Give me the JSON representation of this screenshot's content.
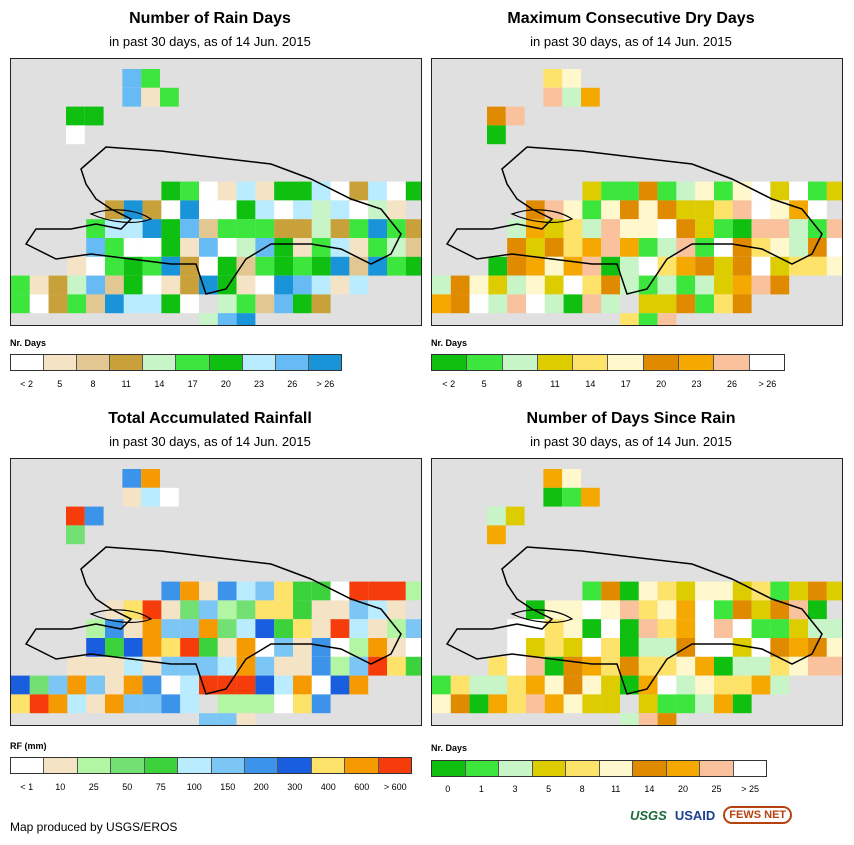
{
  "panels": [
    {
      "title": "Number of Rain Days",
      "subtitle": "in past 30 days, as of 14 Jun. 2015",
      "legend_title": "Nr. Days",
      "legend_labels": [
        "< 2",
        "5",
        "8",
        "11",
        "14",
        "17",
        "20",
        "23",
        "26",
        "> 26"
      ],
      "legend_colors": [
        "#ffffff",
        "#f5e3c6",
        "#e2c792",
        "#c9a13a",
        "#c8f5c8",
        "#3ce63c",
        "#10c010",
        "#b9ecff",
        "#66bbf5",
        "#1a94d9"
      ]
    },
    {
      "title": "Maximum Consecutive Dry Days",
      "subtitle": "in past 30 days, as of 14 Jun. 2015",
      "legend_title": "Nr. Days",
      "legend_labels": [
        "< 2",
        "5",
        "8",
        "11",
        "14",
        "17",
        "20",
        "23",
        "26",
        "> 26"
      ],
      "legend_colors": [
        "#10c010",
        "#3ce63c",
        "#c8f5c8",
        "#ddcc00",
        "#fde36a",
        "#fff8cc",
        "#e08a00",
        "#f5a800",
        "#f9c29c",
        "#ffffff"
      ]
    },
    {
      "title": "Total Accumulated Rainfall",
      "subtitle": "in past 30 days, as of 14 Jun. 2015",
      "legend_title": "RF (mm)",
      "legend_labels": [
        "< 1",
        "10",
        "25",
        "50",
        "75",
        "100",
        "150",
        "200",
        "300",
        "400",
        "600",
        "> 600"
      ],
      "legend_colors": [
        "#ffffff",
        "#f5e3c6",
        "#b2f5a2",
        "#72e072",
        "#3cd23c",
        "#b9ecff",
        "#7cc6f5",
        "#3c94ea",
        "#1a5ee0",
        "#fde36a",
        "#f59a00",
        "#f53c0a"
      ]
    },
    {
      "title": "Number of Days Since Rain",
      "subtitle": "in past 30 days, as of 14 Jun. 2015",
      "legend_title": "Nr. Days",
      "legend_labels": [
        "0",
        "1",
        "3",
        "5",
        "8",
        "11",
        "14",
        "20",
        "25",
        "> 25"
      ],
      "legend_colors": [
        "#10c010",
        "#3ce63c",
        "#c8f5c8",
        "#ddcc00",
        "#fde36a",
        "#fff8cc",
        "#e08a00",
        "#f5a800",
        "#f9c29c",
        "#ffffff"
      ]
    }
  ],
  "credit": "Map produced by USGS/EROS",
  "logos": [
    "USGS",
    "USAID",
    "FEWS NET"
  ]
}
